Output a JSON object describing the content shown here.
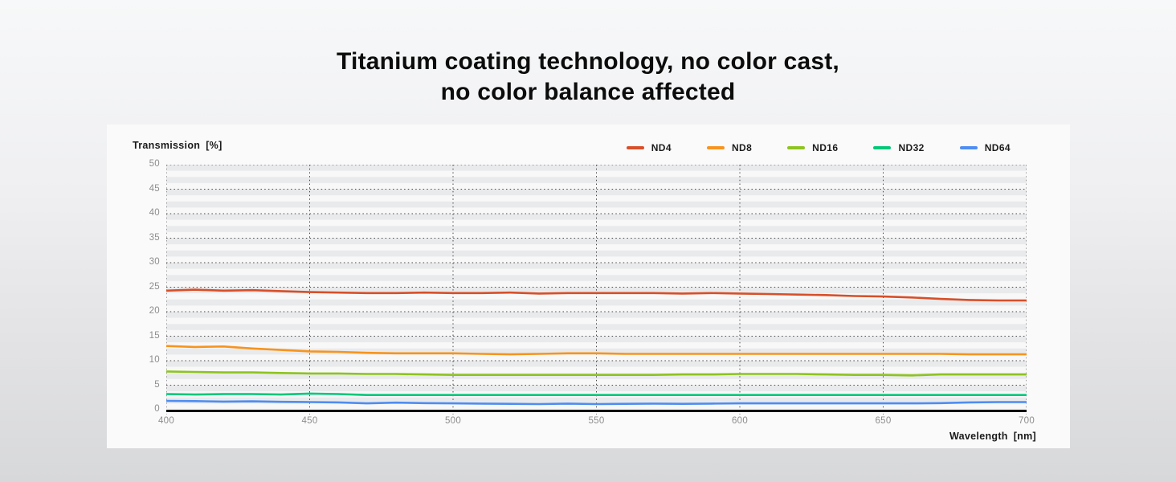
{
  "page": {
    "title_line1": "Titanium coating technology, no color cast,",
    "title_line2": "no color balance affected"
  },
  "axes": {
    "y_title": "Transmission",
    "y_unit": "[%]",
    "x_title": "Wavelength",
    "x_unit": "[nm]"
  },
  "colors": {
    "card_bg": "#fafafb",
    "stripe_gray": "#e9eaec",
    "stripe_light": "#f8f8f9",
    "grid_dots": "#4a4a4a",
    "axis_black": "#0a0a0a",
    "tick_text": "#8d8d8d"
  },
  "chart_data": {
    "type": "line",
    "title": "Titanium coating technology, no color cast, no color balance affected",
    "xlabel": "Wavelength [nm]",
    "ylabel": "Transmission [%]",
    "xlim": [
      400,
      700
    ],
    "ylim": [
      0,
      50
    ],
    "x_ticks": [
      400,
      450,
      500,
      550,
      600,
      650,
      700
    ],
    "y_ticks": [
      50,
      45,
      40,
      35,
      30,
      25,
      20,
      15,
      10,
      5,
      0
    ],
    "grid": "dotted lines every 5% and every 50nm, striped gray/white background bands",
    "legend_position": "top-right",
    "x": [
      400,
      410,
      420,
      430,
      440,
      450,
      460,
      470,
      480,
      490,
      500,
      510,
      520,
      530,
      540,
      550,
      560,
      570,
      580,
      590,
      600,
      610,
      620,
      630,
      640,
      650,
      660,
      670,
      680,
      690,
      700
    ],
    "series": [
      {
        "name": "ND4",
        "color": "#d84f28",
        "values": [
          24.3,
          24.5,
          24.3,
          24.4,
          24.2,
          24.0,
          23.9,
          23.8,
          23.8,
          23.9,
          23.8,
          23.8,
          23.9,
          23.7,
          23.8,
          23.8,
          23.8,
          23.8,
          23.7,
          23.8,
          23.7,
          23.6,
          23.5,
          23.4,
          23.2,
          23.1,
          22.9,
          22.6,
          22.4,
          22.3,
          22.3
        ]
      },
      {
        "name": "ND8",
        "color": "#f7941d",
        "values": [
          13.0,
          12.8,
          12.9,
          12.5,
          12.2,
          11.9,
          11.8,
          11.6,
          11.5,
          11.5,
          11.5,
          11.4,
          11.3,
          11.4,
          11.5,
          11.5,
          11.4,
          11.4,
          11.4,
          11.4,
          11.4,
          11.4,
          11.4,
          11.4,
          11.4,
          11.4,
          11.4,
          11.4,
          11.3,
          11.3,
          11.3
        ]
      },
      {
        "name": "ND16",
        "color": "#8dc41e",
        "values": [
          7.8,
          7.7,
          7.6,
          7.6,
          7.5,
          7.4,
          7.4,
          7.3,
          7.3,
          7.2,
          7.1,
          7.1,
          7.1,
          7.1,
          7.1,
          7.1,
          7.1,
          7.1,
          7.2,
          7.2,
          7.3,
          7.3,
          7.3,
          7.2,
          7.1,
          7.1,
          7.0,
          7.2,
          7.2,
          7.2,
          7.2
        ]
      },
      {
        "name": "ND32",
        "color": "#00c878",
        "values": [
          3.2,
          3.1,
          3.2,
          3.2,
          3.1,
          3.3,
          3.2,
          3.0,
          3.0,
          3.0,
          3.0,
          3.0,
          3.0,
          3.0,
          3.0,
          3.0,
          3.0,
          3.0,
          3.0,
          3.0,
          3.0,
          3.0,
          3.0,
          3.0,
          3.0,
          3.0,
          3.0,
          3.0,
          3.0,
          3.0,
          3.0
        ]
      },
      {
        "name": "ND64",
        "color": "#4e8df2",
        "values": [
          1.8,
          1.75,
          1.65,
          1.7,
          1.6,
          1.55,
          1.5,
          1.3,
          1.45,
          1.35,
          1.3,
          1.25,
          1.2,
          1.15,
          1.25,
          1.15,
          1.2,
          1.25,
          1.2,
          1.25,
          1.3,
          1.3,
          1.3,
          1.3,
          1.3,
          1.3,
          1.3,
          1.35,
          1.5,
          1.55,
          1.55
        ]
      }
    ]
  }
}
